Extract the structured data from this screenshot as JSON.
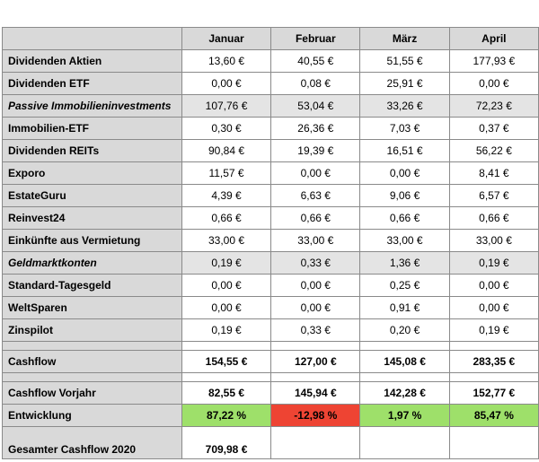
{
  "header": {
    "corner": "",
    "months": [
      "Januar",
      "Februar",
      "März",
      "April"
    ]
  },
  "rows": [
    {
      "label": "Dividenden Aktien",
      "values": [
        "13,60 €",
        "40,55 €",
        "51,55 €",
        "177,93 €"
      ]
    },
    {
      "label": "Dividenden ETF",
      "values": [
        "0,00 €",
        "0,08 €",
        "25,91 €",
        "0,00 €"
      ]
    },
    {
      "label": "Passive Immobilieninvestments",
      "values": [
        "107,76 €",
        "53,04 €",
        "33,26 €",
        "72,23 €"
      ]
    },
    {
      "label": "Immobilien-ETF",
      "values": [
        "0,30 €",
        "26,36 €",
        "7,03 €",
        "0,37 €"
      ]
    },
    {
      "label": "Dividenden REITs",
      "values": [
        "90,84 €",
        "19,39 €",
        "16,51 €",
        "56,22 €"
      ]
    },
    {
      "label": "Exporo",
      "values": [
        "11,57 €",
        "0,00 €",
        "0,00 €",
        "8,41 €"
      ]
    },
    {
      "label": "EstateGuru",
      "values": [
        "4,39 €",
        "6,63 €",
        "9,06 €",
        "6,57 €"
      ]
    },
    {
      "label": "Reinvest24",
      "values": [
        "0,66 €",
        "0,66 €",
        "0,66 €",
        "0,66 €"
      ]
    },
    {
      "label": "Einkünfte aus Vermietung",
      "values": [
        "33,00 €",
        "33,00 €",
        "33,00 €",
        "33,00 €"
      ]
    },
    {
      "label": "Geldmarktkonten",
      "values": [
        "0,19 €",
        "0,33 €",
        "1,36 €",
        "0,19 €"
      ]
    },
    {
      "label": "Standard-Tagesgeld",
      "values": [
        "0,00 €",
        "0,00 €",
        "0,25 €",
        "0,00 €"
      ]
    },
    {
      "label": "WeltSparen",
      "values": [
        "0,00 €",
        "0,00 €",
        "0,91 €",
        "0,00 €"
      ]
    },
    {
      "label": "Zinspilot",
      "values": [
        "0,19 €",
        "0,33 €",
        "0,20 €",
        "0,19 €"
      ]
    }
  ],
  "cashflow": {
    "label": "Cashflow",
    "values": [
      "154,55 €",
      "127,00 €",
      "145,08 €",
      "283,35 €"
    ]
  },
  "cashflow_prev": {
    "label": "Cashflow Vorjahr",
    "values": [
      "82,55 €",
      "145,94 €",
      "142,28 €",
      "152,77 €"
    ]
  },
  "entwicklung": {
    "label": "Entwicklung",
    "values": [
      "87,22 %",
      "-12,98 %",
      "1,97 %",
      "85,47 %"
    ]
  },
  "total": {
    "label": "Gesamter Cashflow 2020",
    "value": "709,98 €"
  },
  "colors": {
    "positive": "#9ee06a",
    "negative": "#ee4433",
    "label_bg": "#d9d9d9"
  }
}
